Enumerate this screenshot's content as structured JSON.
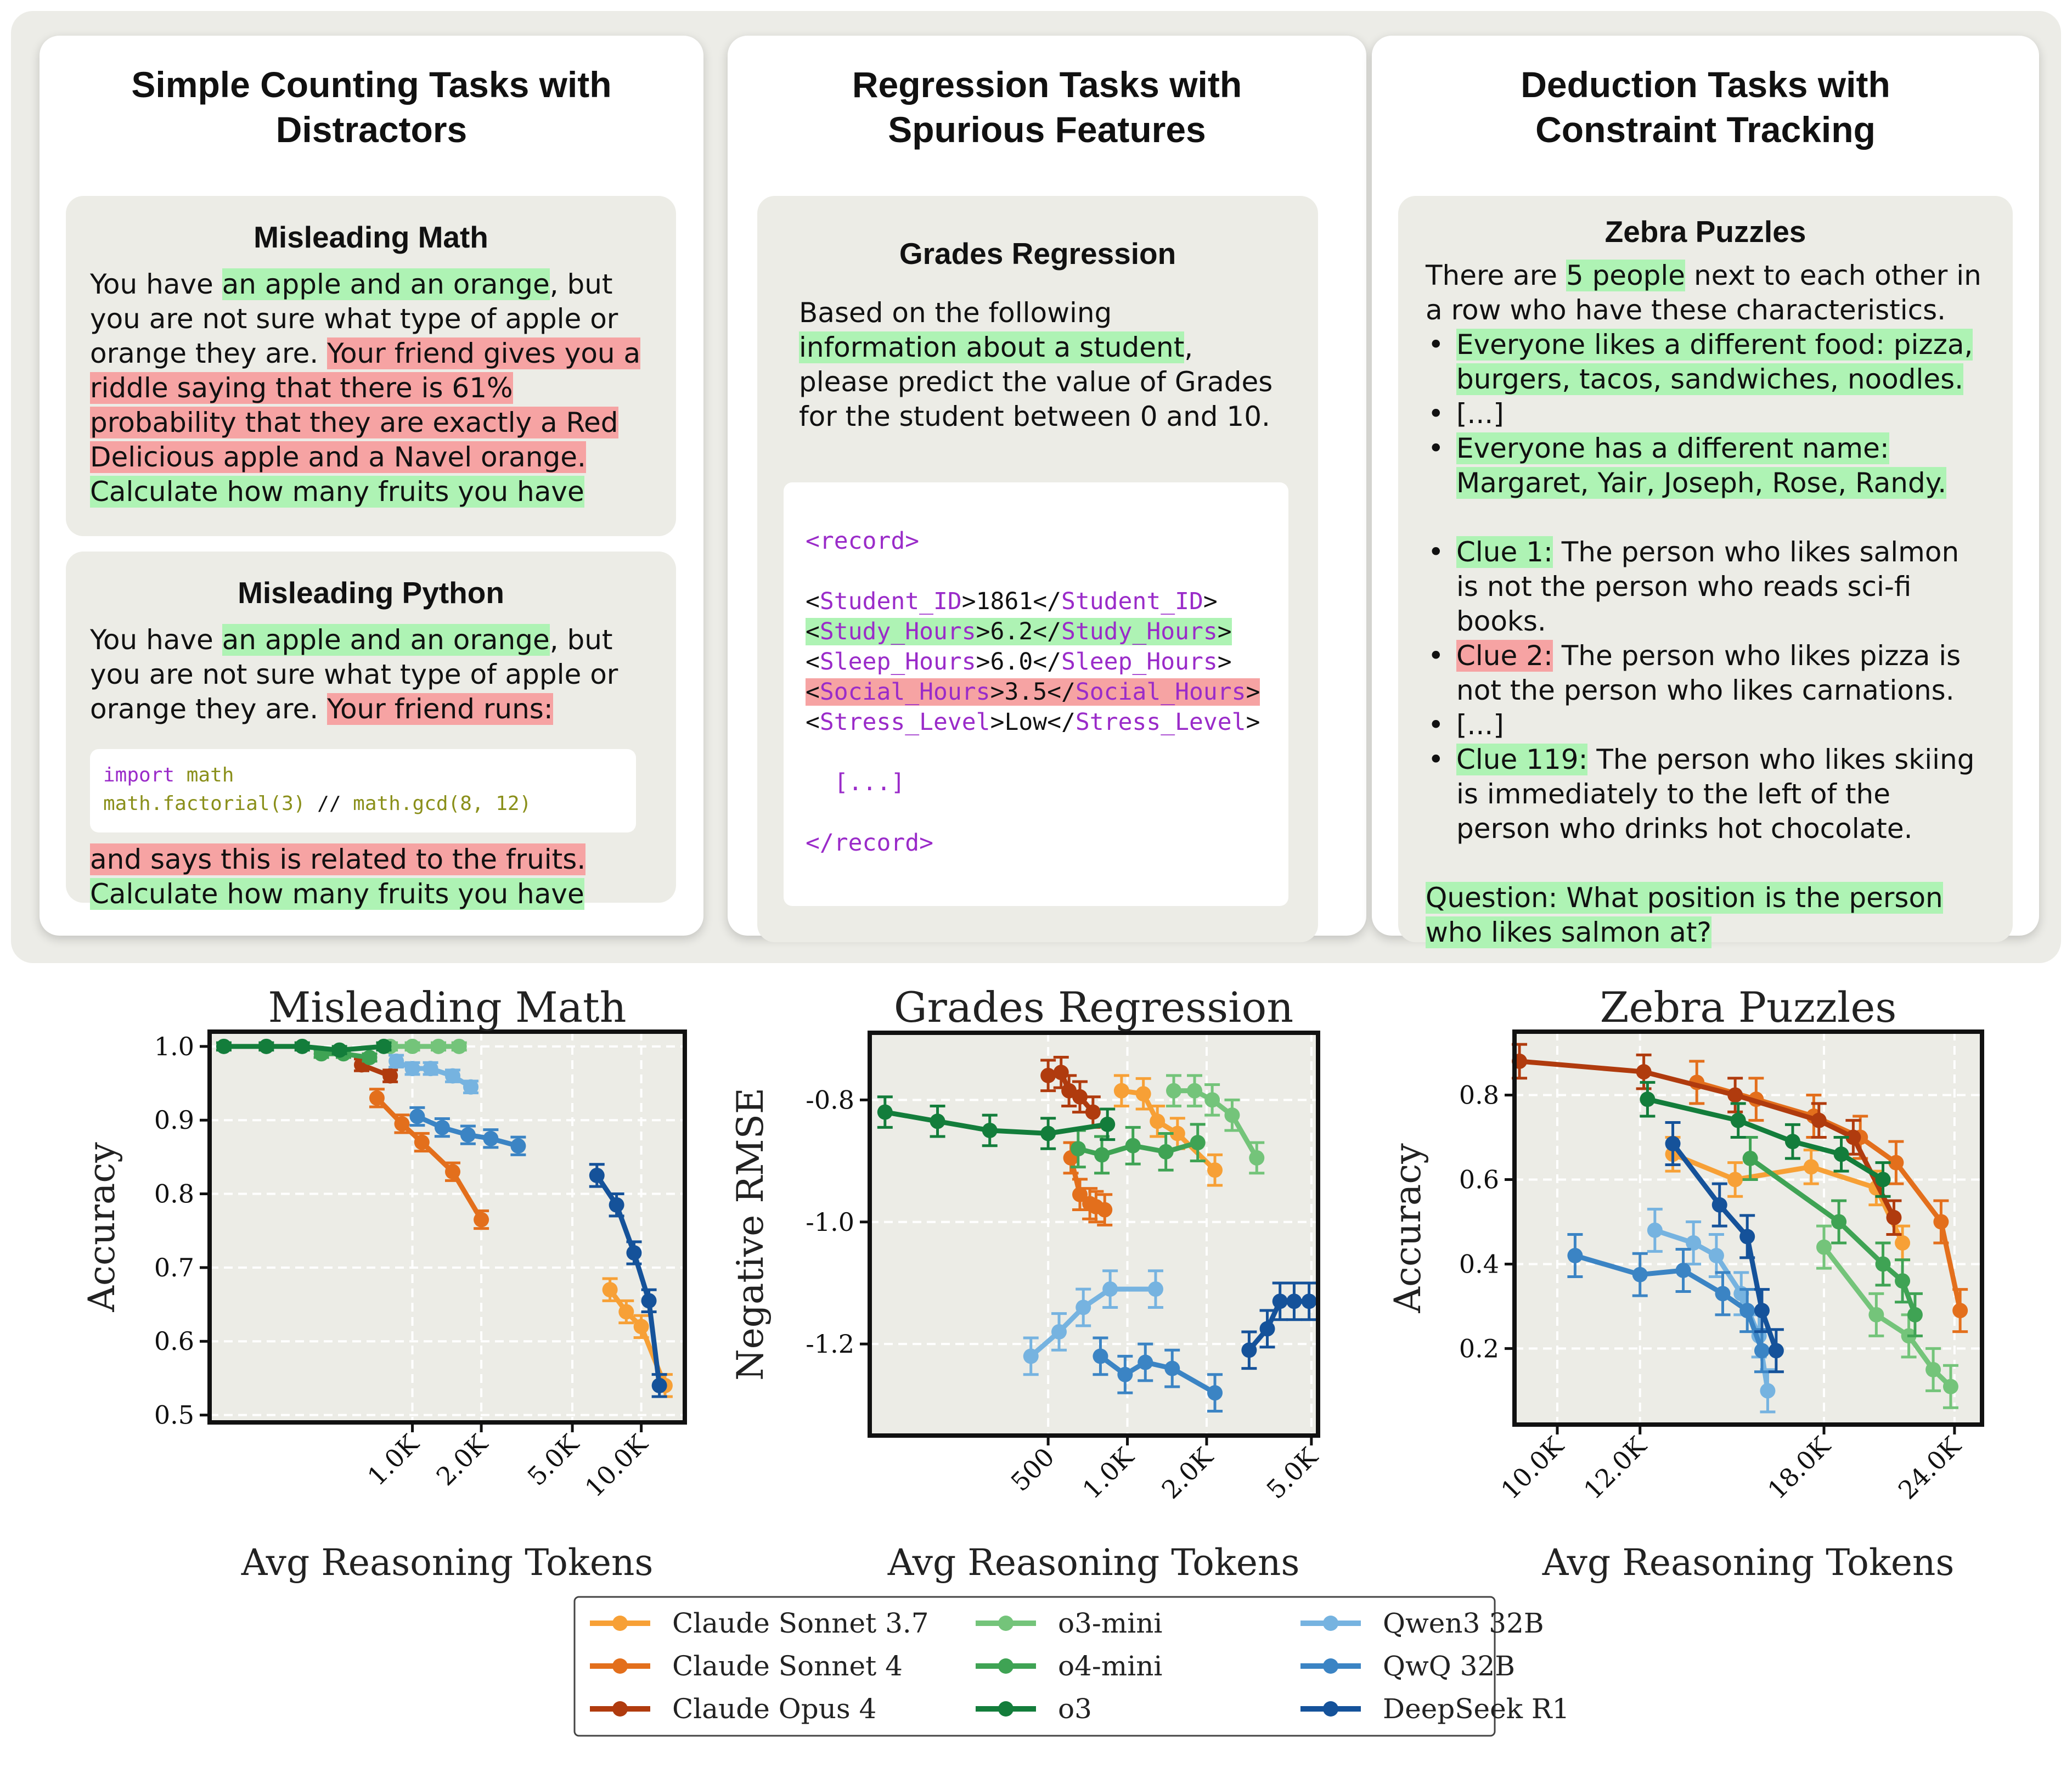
{
  "panels": [
    {
      "title": "Simple Counting Tasks with Distractors",
      "cards": [
        {
          "title": "Misleading Math",
          "segments": [
            {
              "t": "You have ",
              "h": ""
            },
            {
              "t": "an apple and an orange",
              "h": "g"
            },
            {
              "t": ", but you are not sure what type of apple or orange they are. ",
              "h": ""
            },
            {
              "t": "Your friend gives you a riddle saying that there is 61% probability that they are exactly a Red Delicious apple and a Navel orange.",
              "h": "r"
            },
            {
              "t": " ",
              "h": ""
            },
            {
              "t": "Calculate how many fruits you have",
              "h": "g"
            }
          ]
        },
        {
          "title": "Misleading Python",
          "segments": [
            {
              "t": "You have ",
              "h": ""
            },
            {
              "t": "an apple and an orange",
              "h": "g"
            },
            {
              "t": ", but you are not sure what type of apple or orange they are. ",
              "h": ""
            },
            {
              "t": "Your friend runs:",
              "h": "r"
            }
          ],
          "code": [
            [
              {
                "t": "import",
                "c": "kw"
              },
              {
                "t": " math",
                "c": "fn"
              }
            ],
            [
              {
                "t": "math.factorial(3)",
                "c": "fn"
              },
              {
                "t": " // ",
                "c": ""
              },
              {
                "t": "math.gcd(8, 12)",
                "c": "fn"
              }
            ]
          ],
          "after": [
            {
              "t": "and says this is related to the fruits.",
              "h": "r"
            },
            {
              "t": "Calculate how many fruits you have",
              "h": "g"
            }
          ]
        }
      ]
    },
    {
      "title": "Regression Tasks with Spurious Features",
      "cards": [
        {
          "title": "Grades Regression",
          "segments": [
            {
              "t": "Based on the following ",
              "h": ""
            },
            {
              "t": "information about a student",
              "h": "g"
            },
            {
              "t": ", please predict the value of Grades for the student between 0 and 10.",
              "h": ""
            }
          ],
          "record": {
            "open": "<record>",
            "rows": [
              {
                "tag": "Student_ID",
                "val": "1861",
                "h": ""
              },
              {
                "tag": "Study_Hours",
                "val": "6.2",
                "h": "g"
              },
              {
                "tag": "Sleep_Hours",
                "val": "6.0",
                "h": ""
              },
              {
                "tag": "Social_Hours",
                "val": "3.5",
                "h": "r"
              },
              {
                "tag": "Stress_Level",
                "val": "Low",
                "h": ""
              }
            ],
            "ellipsis": "[...]",
            "close": "</record>"
          }
        }
      ]
    },
    {
      "title": "Deduction Tasks with Constraint Tracking",
      "cards": [
        {
          "title": "Zebra Puzzles",
          "intro": [
            {
              "t": "There are ",
              "h": ""
            },
            {
              "t": "5 people",
              "h": "g"
            },
            {
              "t": " next to each other in a row who have these characteristics.",
              "h": ""
            }
          ],
          "bullets1": [
            [
              {
                "t": "Everyone likes a different food: pizza, burgers, tacos, sandwiches, noodles.",
                "h": "g"
              }
            ],
            [
              {
                "t": "[...]",
                "h": ""
              }
            ],
            [
              {
                "t": "Everyone has a different name: Margaret, Yair, Joseph, Rose, Randy.",
                "h": "g"
              }
            ]
          ],
          "bullets2": [
            [
              {
                "t": "Clue 1:",
                "h": "g"
              },
              {
                "t": " The person who likes salmon is not the person who reads sci-fi books.",
                "h": ""
              }
            ],
            [
              {
                "t": "Clue 2:",
                "h": "r"
              },
              {
                "t": " The person who likes pizza is not the person who likes carnations.",
                "h": ""
              }
            ],
            [
              {
                "t": "[...]",
                "h": ""
              }
            ],
            [
              {
                "t": "Clue 119:",
                "h": "g"
              },
              {
                "t": " The person who likes skiing is immediately to the left of the person who drinks hot chocolate.",
                "h": ""
              }
            ]
          ],
          "question": "Question: What position is the person who likes salmon at?"
        }
      ]
    }
  ],
  "chart_data": [
    {
      "type": "line",
      "title": "Misleading Math",
      "xlabel": "Avg Reasoning Tokens",
      "ylabel": "Accuracy",
      "xscale": "log",
      "xlim": [
        130,
        15500
      ],
      "ylim": [
        0.49,
        1.02
      ],
      "xticks": [
        1000,
        2000,
        5000,
        10000
      ],
      "xticklabels": [
        "1.0K",
        "2.0K",
        "5.0K",
        "10.0K"
      ],
      "yticks": [
        0.5,
        0.6,
        0.7,
        0.8,
        0.9,
        1.0
      ],
      "yticklabels": [
        "0.5",
        "0.6",
        "0.7",
        "0.8",
        "0.9",
        "1.0"
      ],
      "grid": true,
      "series": [
        {
          "name": "Claude Sonnet 3.7",
          "color": "#f7a036",
          "x": [
            7300,
            8600,
            10000,
            12700
          ],
          "y": [
            0.67,
            0.64,
            0.62,
            0.54
          ],
          "err": [
            0.015,
            0.015,
            0.015,
            0.015
          ]
        },
        {
          "name": "Claude Sonnet 4",
          "color": "#e36f1c",
          "x": [
            700,
            900,
            1100,
            1500,
            2000
          ],
          "y": [
            0.93,
            0.895,
            0.87,
            0.83,
            0.765
          ],
          "err": [
            0.012,
            0.012,
            0.012,
            0.012,
            0.012
          ]
        },
        {
          "name": "Claude Opus 4",
          "color": "#b03b0e",
          "x": [
            600,
            800
          ],
          "y": [
            0.975,
            0.96
          ],
          "err": [
            0.008,
            0.008
          ]
        },
        {
          "name": "o3-mini",
          "color": "#74c47a",
          "x": [
            800,
            1000,
            1300,
            1600
          ],
          "y": [
            1.0,
            1.0,
            1.0,
            1.0
          ],
          "err": [
            0.005,
            0.005,
            0.005,
            0.005
          ]
        },
        {
          "name": "o4-mini",
          "color": "#3fa354",
          "x": [
            400,
            500,
            650
          ],
          "y": [
            0.99,
            0.99,
            0.985
          ],
          "err": [
            0.005,
            0.005,
            0.005
          ]
        },
        {
          "name": "o3",
          "color": "#137d3b",
          "x": [
            150,
            230,
            330,
            480,
            750
          ],
          "y": [
            1.0,
            1.0,
            1.0,
            0.995,
            1.0
          ],
          "err": [
            0.005,
            0.005,
            0.005,
            0.005,
            0.005
          ]
        },
        {
          "name": "Qwen3 32B",
          "color": "#76b3e0",
          "x": [
            850,
            1000,
            1200,
            1500,
            1800
          ],
          "y": [
            0.98,
            0.97,
            0.97,
            0.96,
            0.945
          ],
          "err": [
            0.008,
            0.008,
            0.008,
            0.008,
            0.008
          ]
        },
        {
          "name": "QwQ 32B",
          "color": "#3b84c4",
          "x": [
            1050,
            1350,
            1750,
            2200,
            2900
          ],
          "y": [
            0.905,
            0.89,
            0.88,
            0.875,
            0.865
          ],
          "err": [
            0.012,
            0.012,
            0.012,
            0.012,
            0.012
          ]
        },
        {
          "name": "DeepSeek R1",
          "color": "#15529a",
          "x": [
            6400,
            7800,
            9300,
            10800,
            12000
          ],
          "y": [
            0.825,
            0.785,
            0.72,
            0.655,
            0.54
          ],
          "err": [
            0.015,
            0.015,
            0.015,
            0.015,
            0.015
          ]
        }
      ]
    },
    {
      "type": "line",
      "title": "Grades Regression",
      "xlabel": "Avg Reasoning Tokens",
      "ylabel": "Negative RMSE",
      "xscale": "log",
      "xlim": [
        105,
        5300
      ],
      "ylim": [
        -1.35,
        -0.69
      ],
      "xticks": [
        500,
        1000,
        2000,
        5000
      ],
      "xticklabels": [
        "500",
        "1.0K",
        "2.0K",
        "5.0K"
      ],
      "yticks": [
        -1.2,
        -1.0,
        -0.8
      ],
      "yticklabels": [
        "-1.2",
        "-1.0",
        "-0.8"
      ],
      "grid": true,
      "series": [
        {
          "name": "Claude Sonnet 3.7",
          "color": "#f7a036",
          "x": [
            950,
            1150,
            1300,
            1550,
            2150
          ],
          "y": [
            -0.785,
            -0.79,
            -0.835,
            -0.855,
            -0.915
          ],
          "err": [
            0.025,
            0.025,
            0.025,
            0.025,
            0.025
          ]
        },
        {
          "name": "Claude Sonnet 4",
          "color": "#e36f1c",
          "x": [
            610,
            660,
            720,
            760,
            820
          ],
          "y": [
            -0.895,
            -0.955,
            -0.97,
            -0.975,
            -0.98
          ],
          "err": [
            0.025,
            0.025,
            0.025,
            0.025,
            0.025
          ]
        },
        {
          "name": "Claude Opus 4",
          "color": "#b03b0e",
          "x": [
            500,
            560,
            600,
            660,
            740
          ],
          "y": [
            -0.76,
            -0.755,
            -0.785,
            -0.795,
            -0.82
          ],
          "err": [
            0.025,
            0.025,
            0.025,
            0.025,
            0.025
          ]
        },
        {
          "name": "o3-mini",
          "color": "#74c47a",
          "x": [
            1500,
            1800,
            2100,
            2500,
            3100
          ],
          "y": [
            -0.785,
            -0.785,
            -0.8,
            -0.825,
            -0.895
          ],
          "err": [
            0.025,
            0.025,
            0.025,
            0.025,
            0.025
          ]
        },
        {
          "name": "o4-mini",
          "color": "#3fa354",
          "x": [
            650,
            800,
            1050,
            1400,
            1850
          ],
          "y": [
            -0.88,
            -0.89,
            -0.875,
            -0.885,
            -0.87
          ],
          "err": [
            0.03,
            0.03,
            0.03,
            0.03,
            0.03
          ]
        },
        {
          "name": "o3",
          "color": "#137d3b",
          "x": [
            120,
            190,
            300,
            500,
            840
          ],
          "y": [
            -0.82,
            -0.835,
            -0.85,
            -0.855,
            -0.84
          ],
          "err": [
            0.025,
            0.025,
            0.025,
            0.025,
            0.025
          ]
        },
        {
          "name": "Qwen3 32B",
          "color": "#76b3e0",
          "x": [
            430,
            550,
            680,
            860,
            1280
          ],
          "y": [
            -1.22,
            -1.18,
            -1.14,
            -1.11,
            -1.11
          ],
          "err": [
            0.03,
            0.03,
            0.03,
            0.03,
            0.03
          ]
        },
        {
          "name": "QwQ 32B",
          "color": "#3b84c4",
          "x": [
            790,
            980,
            1170,
            1480,
            2150
          ],
          "y": [
            -1.22,
            -1.25,
            -1.23,
            -1.24,
            -1.28
          ],
          "err": [
            0.03,
            0.03,
            0.03,
            0.03,
            0.03
          ]
        },
        {
          "name": "DeepSeek R1",
          "color": "#15529a",
          "x": [
            2900,
            3400,
            3800,
            4300,
            4900
          ],
          "y": [
            -1.21,
            -1.175,
            -1.13,
            -1.13,
            -1.13
          ],
          "err": [
            0.03,
            0.03,
            0.03,
            0.03,
            0.03
          ]
        }
      ]
    },
    {
      "type": "line",
      "title": "Zebra Puzzles",
      "xlabel": "Avg Reasoning Tokens",
      "ylabel": "Accuracy",
      "xscale": "log",
      "xlim": [
        9100,
        25500
      ],
      "ylim": [
        0.02,
        0.95
      ],
      "xticks": [
        10000,
        12000,
        18000,
        24000
      ],
      "xticklabels": [
        "10.0K",
        "12.0K",
        "18.0K",
        "24.0K"
      ],
      "yticks": [
        0.2,
        0.4,
        0.6,
        0.8
      ],
      "yticklabels": [
        "0.2",
        "0.4",
        "0.6",
        "0.8"
      ],
      "grid": true,
      "series": [
        {
          "name": "Claude Sonnet 3.7",
          "color": "#f7a036",
          "x": [
            12900,
            14800,
            17500,
            20200,
            21400
          ],
          "y": [
            0.66,
            0.6,
            0.63,
            0.58,
            0.45
          ],
          "err": [
            0.04,
            0.04,
            0.04,
            0.04,
            0.04
          ]
        },
        {
          "name": "Claude Sonnet 4",
          "color": "#e36f1c",
          "x": [
            13600,
            15500,
            17600,
            19500,
            21100,
            23300,
            24300
          ],
          "y": [
            0.83,
            0.79,
            0.75,
            0.7,
            0.64,
            0.5,
            0.29
          ],
          "err": [
            0.05,
            0.05,
            0.05,
            0.05,
            0.05,
            0.05,
            0.05
          ]
        },
        {
          "name": "Claude Opus 4",
          "color": "#b03b0e",
          "x": [
            9200,
            12100,
            14800,
            17800,
            19200,
            21000
          ],
          "y": [
            0.88,
            0.855,
            0.8,
            0.74,
            0.7,
            0.51
          ],
          "err": [
            0.04,
            0.04,
            0.04,
            0.04,
            0.04,
            0.04
          ]
        },
        {
          "name": "o3-mini",
          "color": "#74c47a",
          "x": [
            18000,
            20200,
            21700,
            22900,
            23800
          ],
          "y": [
            0.44,
            0.28,
            0.23,
            0.15,
            0.11
          ],
          "err": [
            0.05,
            0.05,
            0.05,
            0.05,
            0.05
          ]
        },
        {
          "name": "o4-mini",
          "color": "#3fa354",
          "x": [
            15300,
            18600,
            20500,
            21400,
            22000
          ],
          "y": [
            0.65,
            0.5,
            0.4,
            0.36,
            0.28
          ],
          "err": [
            0.05,
            0.05,
            0.05,
            0.05,
            0.05
          ]
        },
        {
          "name": "o3",
          "color": "#137d3b",
          "x": [
            12200,
            14900,
            16800,
            18700,
            20500
          ],
          "y": [
            0.79,
            0.74,
            0.69,
            0.66,
            0.6
          ],
          "err": [
            0.04,
            0.04,
            0.04,
            0.04,
            0.04
          ]
        },
        {
          "name": "Qwen3 32B",
          "color": "#76b3e0",
          "x": [
            12400,
            13500,
            14200,
            15000,
            15600,
            15900
          ],
          "y": [
            0.48,
            0.45,
            0.42,
            0.33,
            0.23,
            0.1
          ],
          "err": [
            0.05,
            0.05,
            0.05,
            0.05,
            0.05,
            0.05
          ]
        },
        {
          "name": "QwQ 32B",
          "color": "#3b84c4",
          "x": [
            10400,
            12000,
            13200,
            14400,
            15200,
            15700
          ],
          "y": [
            0.42,
            0.375,
            0.385,
            0.33,
            0.29,
            0.195
          ],
          "err": [
            0.05,
            0.05,
            0.05,
            0.05,
            0.05,
            0.05
          ]
        },
        {
          "name": "DeepSeek R1",
          "color": "#15529a",
          "x": [
            12900,
            14300,
            15200,
            15700,
            16200
          ],
          "y": [
            0.685,
            0.54,
            0.465,
            0.29,
            0.195
          ],
          "err": [
            0.05,
            0.05,
            0.05,
            0.05,
            0.05
          ]
        }
      ]
    }
  ],
  "legend": {
    "location": "bottom-center",
    "columns": [
      [
        "Claude Sonnet 3.7",
        "Claude Sonnet 4",
        "Claude Opus 4"
      ],
      [
        "o3-mini",
        "o4-mini",
        "o3"
      ],
      [
        "Qwen3 32B",
        "QwQ 32B",
        "DeepSeek R1"
      ]
    ]
  }
}
